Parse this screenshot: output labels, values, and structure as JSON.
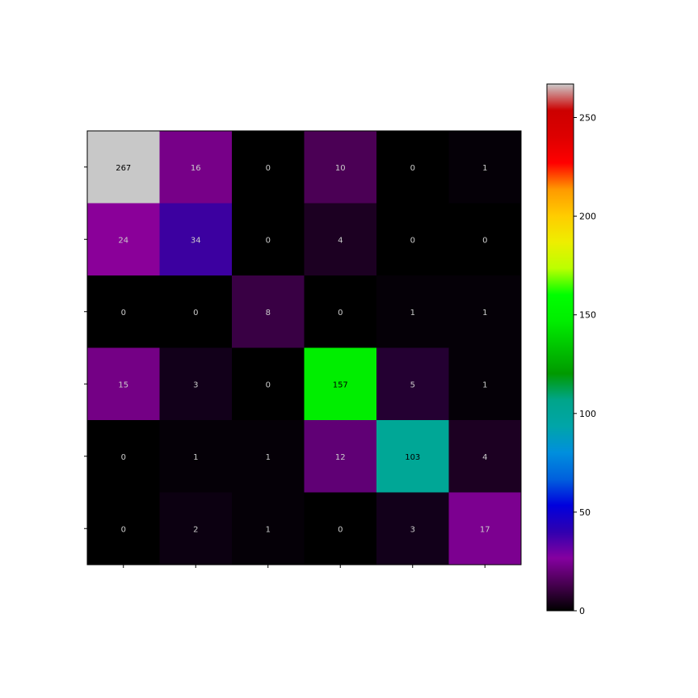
{
  "chart_data": {
    "type": "heatmap",
    "title": "",
    "xlabel": "",
    "ylabel": "",
    "rows": 6,
    "cols": 6,
    "matrix": [
      [
        267,
        16,
        0,
        10,
        0,
        1
      ],
      [
        24,
        34,
        0,
        4,
        0,
        0
      ],
      [
        0,
        0,
        8,
        0,
        1,
        1
      ],
      [
        15,
        3,
        0,
        157,
        5,
        1
      ],
      [
        0,
        1,
        1,
        12,
        103,
        4
      ],
      [
        0,
        2,
        1,
        0,
        3,
        17
      ]
    ],
    "cell_colors": [
      [
        "#c8c8c8",
        "#770088",
        "#000000",
        "#4b0055",
        "#000000",
        "#050007"
      ],
      [
        "#8a0099",
        "#3c00a0",
        "#000000",
        "#1c0022",
        "#000000",
        "#000000"
      ],
      [
        "#000000",
        "#000000",
        "#390044",
        "#000000",
        "#050007",
        "#050007"
      ],
      [
        "#740085",
        "#12001a",
        "#000000",
        "#00ee00",
        "#240032",
        "#050007"
      ],
      [
        "#000000",
        "#050007",
        "#050007",
        "#600075",
        "#00a796",
        "#1c0022"
      ],
      [
        "#000000",
        "#0c0011",
        "#050007",
        "#000000",
        "#12001a",
        "#7c0090"
      ]
    ],
    "value_text_color_dark": "#000000",
    "value_text_color_light": "#cccccc",
    "colorbar": {
      "colormap": "nipy_spectral",
      "vmin": 0,
      "vmax": 267,
      "ticks": [
        0,
        50,
        100,
        150,
        200,
        250
      ],
      "tick_labels": [
        "0",
        "50",
        "100",
        "150",
        "200",
        "250"
      ]
    },
    "grid": false,
    "legend": "none"
  }
}
